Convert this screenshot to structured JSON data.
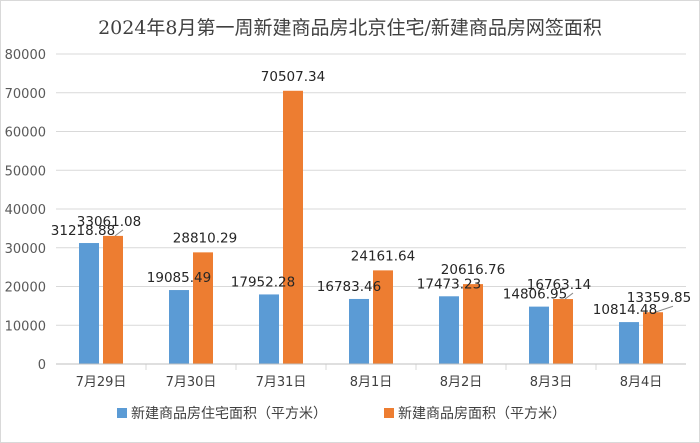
{
  "chart_data": {
    "type": "bar",
    "title": "2024年8月第一周新建商品房北京住宅/新建商品房网签面积",
    "categories": [
      "7月29日",
      "7月30日",
      "7月31日",
      "8月1日",
      "8月2日",
      "8月3日",
      "8月4日"
    ],
    "series": [
      {
        "name": "新建商品房住宅面积（平方米）",
        "color": "#5b9bd5",
        "values": [
          31218.88,
          19085.49,
          17952.28,
          16783.46,
          17473.23,
          14806.95,
          10814.48
        ],
        "labels": [
          "31218.88",
          "19085.49",
          "17952.28",
          "16783.46",
          "17473.23",
          "14806.95",
          "10814.48"
        ]
      },
      {
        "name": "新建商品房面积（平方米）",
        "color": "#ed7d31",
        "values": [
          33061.08,
          28810.29,
          70507.34,
          24161.64,
          20616.76,
          16763.14,
          13359.85
        ],
        "labels": [
          "33061.08",
          "28810.29",
          "70507.34",
          "24161.64",
          "20616.76",
          "16763.14",
          "13359.85"
        ]
      }
    ],
    "ylim": [
      0,
      80000
    ],
    "yticks": [
      "0",
      "10000",
      "20000",
      "30000",
      "40000",
      "50000",
      "60000",
      "70000",
      "80000"
    ],
    "xlabel": "",
    "ylabel": "",
    "grid": true,
    "legend_position": "bottom"
  }
}
